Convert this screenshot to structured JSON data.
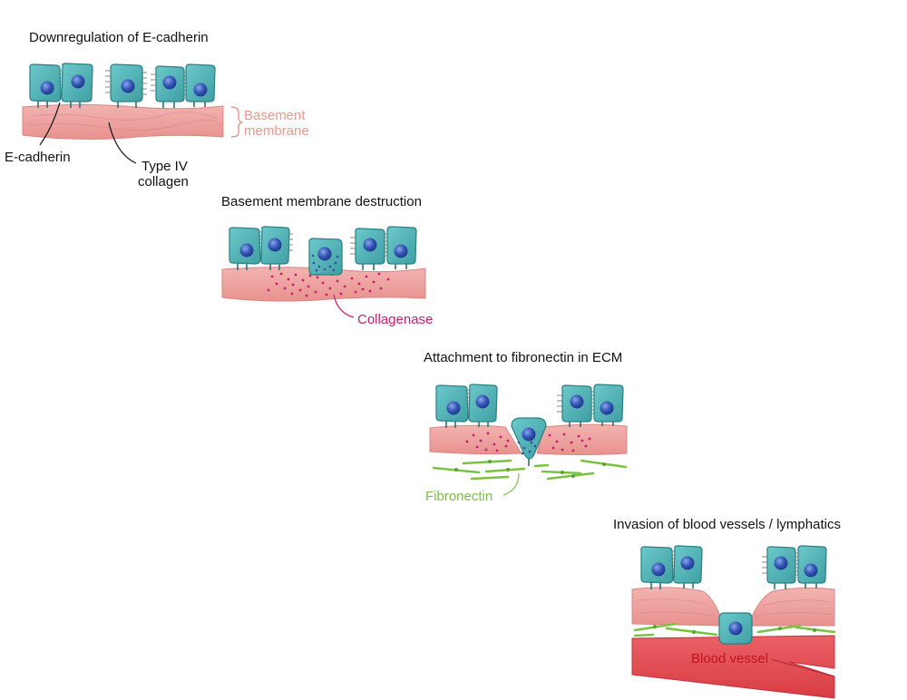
{
  "panels": [
    {
      "title": "Downregulation of E-cadherin",
      "labels": {
        "basement_line1": "Basement",
        "basement_line2": "membrane",
        "ecadherin": "E-cadherin",
        "collagen_line1": "Type IV",
        "collagen_line2": "collagen"
      }
    },
    {
      "title": "Basement membrane destruction",
      "labels": {
        "collagenase": "Collagenase"
      }
    },
    {
      "title": "Attachment to fibronectin in ECM",
      "labels": {
        "fibronectin": "Fibronectin"
      }
    },
    {
      "title": "Invasion of blood vessels / lymphatics",
      "labels": {
        "blood_vessel": "Blood vessel"
      }
    }
  ],
  "colors": {
    "cell_fill": "#4fb3b5",
    "cell_stroke": "#2c7f82",
    "nucleus": "#2e4fa8",
    "membrane": "#eea3a3",
    "membrane_stroke": "#d97f7f",
    "collagenase_dots": "#c81e6e",
    "fibronectin": "#7cc242",
    "vessel": "#e04a50",
    "basement_label": "#e49a8c"
  }
}
